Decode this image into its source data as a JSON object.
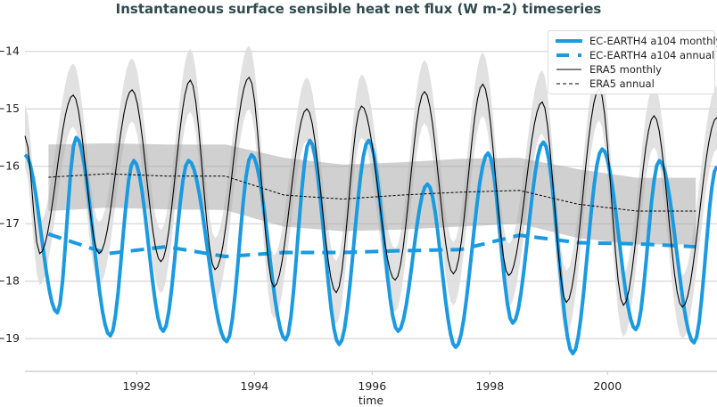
{
  "chart_data": {
    "type": "line",
    "title": "Instantaneous surface sensible heat net flux (W m-2) timeseries",
    "xlabel": "time",
    "ylabel": "",
    "xlim": [
      1990.1,
      2001.86
    ],
    "ylim": [
      -19.57,
      -13.57
    ],
    "xticks": [
      1992,
      1994,
      1996,
      1998,
      2000
    ],
    "yticks": [
      -14,
      -15,
      -16,
      -17,
      -18,
      -19
    ],
    "grid": "horizontal",
    "legend_placement": "top-right",
    "colors": {
      "model": "#1b9ae0",
      "era5": "#000000",
      "band_light": "#dcdcdc",
      "band_dark": "#a9a9a9",
      "title": "#2f4b4f"
    },
    "series": [
      {
        "name": "EC-EARTH4 a104 monthly",
        "style": "solid-thick-blue",
        "note_points": "local extrema [year, value]",
        "points": [
          [
            1990.1,
            -15.8
          ],
          [
            1990.65,
            -18.55
          ],
          [
            1990.97,
            -15.5
          ],
          [
            1991.55,
            -18.95
          ],
          [
            1991.95,
            -15.9
          ],
          [
            1992.45,
            -18.87
          ],
          [
            1992.88,
            -15.9
          ],
          [
            1993.53,
            -19.05
          ],
          [
            1993.95,
            -15.8
          ],
          [
            1994.53,
            -19.02
          ],
          [
            1994.94,
            -15.55
          ],
          [
            1995.44,
            -19.1
          ],
          [
            1995.94,
            -15.55
          ],
          [
            1996.44,
            -18.87
          ],
          [
            1996.94,
            -16.31
          ],
          [
            1997.42,
            -19.15
          ],
          [
            1997.97,
            -15.77
          ],
          [
            1998.39,
            -18.73
          ],
          [
            1998.91,
            -15.58
          ],
          [
            1999.41,
            -19.26
          ],
          [
            1999.91,
            -15.7
          ],
          [
            2000.48,
            -18.84
          ],
          [
            2000.88,
            -15.9
          ],
          [
            2001.47,
            -19.07
          ],
          [
            2001.86,
            -16.0
          ]
        ]
      },
      {
        "name": "EC-EARTH4 a104 annual",
        "style": "dashed-thick-blue",
        "points": [
          [
            1990.5,
            -17.18
          ],
          [
            1991.5,
            -17.52
          ],
          [
            1992.5,
            -17.4
          ],
          [
            1993.5,
            -17.57
          ],
          [
            1994.5,
            -17.5
          ],
          [
            1995.5,
            -17.5
          ],
          [
            1996.5,
            -17.47
          ],
          [
            1997.5,
            -17.45
          ],
          [
            1998.5,
            -17.2
          ],
          [
            1999.5,
            -17.33
          ],
          [
            2000.5,
            -17.35
          ],
          [
            2001.5,
            -17.4
          ]
        ]
      },
      {
        "name": "ERA5 monthly",
        "style": "solid-thin-black",
        "spread": 0.55,
        "points": [
          [
            1990.1,
            -15.47
          ],
          [
            1990.35,
            -17.52
          ],
          [
            1990.92,
            -14.76
          ],
          [
            1991.36,
            -17.52
          ],
          [
            1991.92,
            -14.67
          ],
          [
            1992.41,
            -17.66
          ],
          [
            1992.91,
            -14.5
          ],
          [
            1993.33,
            -17.8
          ],
          [
            1993.91,
            -14.45
          ],
          [
            1994.33,
            -18.1
          ],
          [
            1994.89,
            -15.0
          ],
          [
            1995.39,
            -18.2
          ],
          [
            1995.82,
            -14.95
          ],
          [
            1996.39,
            -17.98
          ],
          [
            1996.89,
            -14.7
          ],
          [
            1997.38,
            -17.87
          ],
          [
            1997.88,
            -14.57
          ],
          [
            1998.32,
            -17.9
          ],
          [
            1998.89,
            -14.88
          ],
          [
            1999.3,
            -18.37
          ],
          [
            1999.86,
            -14.65
          ],
          [
            2000.27,
            -18.42
          ],
          [
            2000.79,
            -15.12
          ],
          [
            2001.27,
            -18.45
          ],
          [
            2001.86,
            -15.15
          ]
        ]
      },
      {
        "name": "ERA5 annual",
        "style": "dashed-thin-black",
        "points": [
          [
            1990.5,
            -16.19
          ],
          [
            1991.5,
            -16.13
          ],
          [
            1992.5,
            -16.17
          ],
          [
            1993.5,
            -16.17
          ],
          [
            1994.5,
            -16.5
          ],
          [
            1995.5,
            -16.57
          ],
          [
            1996.5,
            -16.5
          ],
          [
            1997.5,
            -16.45
          ],
          [
            1998.5,
            -16.42
          ],
          [
            1999.5,
            -16.66
          ],
          [
            2000.5,
            -16.78
          ],
          [
            2001.5,
            -16.78
          ]
        ],
        "band_upper": [
          -15.62,
          -15.6,
          -15.62,
          -15.62,
          -15.85,
          -15.97,
          -15.93,
          -15.87,
          -15.85,
          -16.05,
          -16.2,
          -16.2
        ],
        "band_lower": [
          -16.78,
          -16.72,
          -16.75,
          -16.76,
          -17.05,
          -17.13,
          -17.1,
          -17.05,
          -17.0,
          -17.25,
          -17.36,
          -17.36
        ]
      }
    ],
    "legend": [
      "EC-EARTH4 a104 monthly",
      "EC-EARTH4 a104 annual",
      "ERA5 monthly",
      "ERA5 annual"
    ]
  }
}
